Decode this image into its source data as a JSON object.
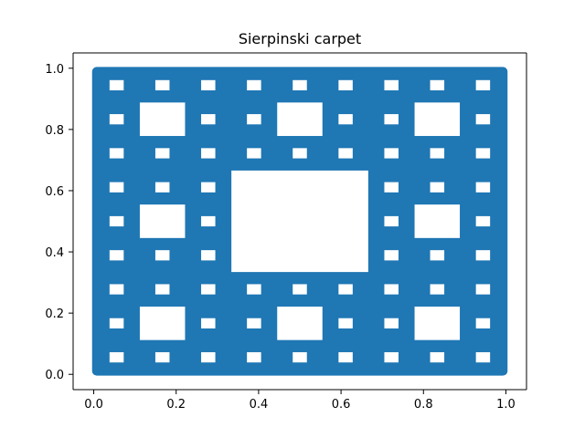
{
  "chart_data": {
    "type": "scatter",
    "title": "Sierpinski carpet",
    "xlabel": "",
    "ylabel": "",
    "xlim": [
      -0.05,
      1.05
    ],
    "ylim": [
      -0.05,
      1.05
    ],
    "xticks": [
      0.0,
      0.2,
      0.4,
      0.6,
      0.8,
      1.0
    ],
    "xtick_labels": [
      "0.0",
      "0.2",
      "0.4",
      "0.6",
      "0.8",
      "1.0"
    ],
    "yticks": [
      0.0,
      0.2,
      0.4,
      0.6,
      0.8,
      1.0
    ],
    "ytick_labels": [
      "0.0",
      "0.2",
      "0.4",
      "0.6",
      "0.8",
      "1.0"
    ],
    "grid": false,
    "legend": "none",
    "marker_color": "#1f77b4",
    "point_domain": {
      "x": [
        0.0,
        1.0
      ],
      "y": [
        0.0,
        1.0
      ]
    },
    "fractal": "sierpinski_carpet",
    "recursion_depth": 3
  }
}
